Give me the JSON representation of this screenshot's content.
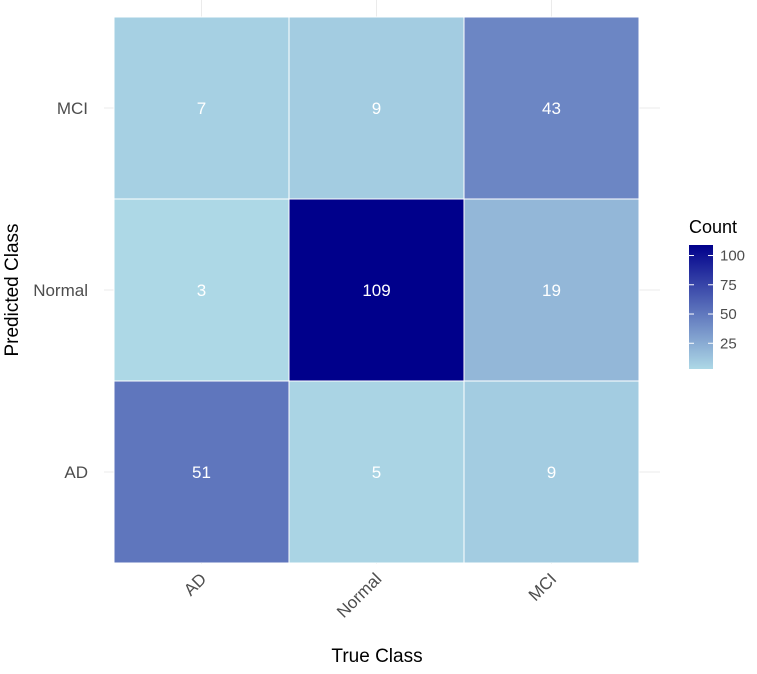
{
  "chart_data": {
    "type": "heatmap",
    "xlabel": "True Class",
    "ylabel": "Predicted Class",
    "x_categories": [
      "AD",
      "Normal",
      "MCI"
    ],
    "y_categories": [
      "AD",
      "Normal",
      "MCI"
    ],
    "cells": [
      {
        "x": "AD",
        "y": "MCI",
        "value": 7
      },
      {
        "x": "Normal",
        "y": "MCI",
        "value": 9
      },
      {
        "x": "MCI",
        "y": "MCI",
        "value": 43
      },
      {
        "x": "AD",
        "y": "Normal",
        "value": 3
      },
      {
        "x": "Normal",
        "y": "Normal",
        "value": 109
      },
      {
        "x": "MCI",
        "y": "Normal",
        "value": 19
      },
      {
        "x": "AD",
        "y": "AD",
        "value": 51
      },
      {
        "x": "Normal",
        "y": "AD",
        "value": 5
      },
      {
        "x": "MCI",
        "y": "AD",
        "value": 9
      }
    ],
    "legend": {
      "title": "Count",
      "ticks": [
        25,
        50,
        75,
        100
      ],
      "range": [
        3,
        109
      ],
      "placement": "right"
    },
    "colors": {
      "low": "#add8e6",
      "high": "#00008b",
      "grid": "#ebebeb",
      "tile_border": "#ffffff"
    },
    "grid": true
  }
}
